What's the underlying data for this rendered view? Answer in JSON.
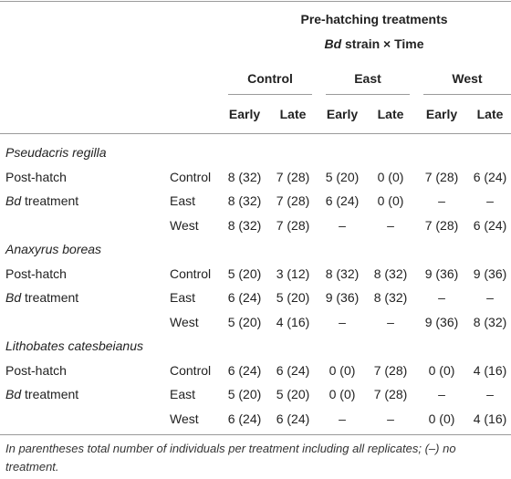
{
  "header": {
    "title": "Pre-hatching treatments",
    "subtitle": {
      "em": "Bd",
      "text": "strain × Time"
    },
    "groups": [
      "Control",
      "East",
      "West"
    ],
    "times": [
      "Early",
      "Late",
      "Early",
      "Late",
      "Early",
      "Late"
    ]
  },
  "sections": [
    {
      "species": "Pseudacris regilla",
      "rows": [
        {
          "label": {
            "text": "Post-hatch"
          },
          "treatment": "Control",
          "cells": [
            "8 (32)",
            "7 (28)",
            "5 (20)",
            "0 (0)",
            "7 (28)",
            "6 (24)"
          ]
        },
        {
          "label": {
            "em": "Bd",
            "text": "treatment"
          },
          "treatment": "East",
          "cells": [
            "8 (32)",
            "7 (28)",
            "6 (24)",
            "0 (0)",
            "–",
            "–"
          ]
        },
        {
          "treatment": "West",
          "cells": [
            "8 (32)",
            "7 (28)",
            "–",
            "–",
            "7 (28)",
            "6 (24)"
          ]
        }
      ]
    },
    {
      "species": "Anaxyrus boreas",
      "rows": [
        {
          "label": {
            "text": "Post-hatch"
          },
          "treatment": "Control",
          "cells": [
            "5 (20)",
            "3 (12)",
            "8 (32)",
            "8 (32)",
            "9 (36)",
            "9 (36)"
          ]
        },
        {
          "label": {
            "em": "Bd",
            "text": "treatment"
          },
          "treatment": "East",
          "cells": [
            "6 (24)",
            "5 (20)",
            "9 (36)",
            "8 (32)",
            "–",
            "–"
          ]
        },
        {
          "treatment": "West",
          "cells": [
            "5 (20)",
            "4 (16)",
            "–",
            "–",
            "9 (36)",
            "8 (32)"
          ]
        }
      ]
    },
    {
      "species": "Lithobates catesbeianus",
      "rows": [
        {
          "label": {
            "text": "Post-hatch"
          },
          "treatment": "Control",
          "cells": [
            "6 (24)",
            "6 (24)",
            "0 (0)",
            "7 (28)",
            "0 (0)",
            "4 (16)"
          ]
        },
        {
          "label": {
            "em": "Bd",
            "text": "treatment"
          },
          "treatment": "East",
          "cells": [
            "5 (20)",
            "5 (20)",
            "0 (0)",
            "7 (28)",
            "–",
            "–"
          ]
        },
        {
          "treatment": "West",
          "cells": [
            "6 (24)",
            "6 (24)",
            "–",
            "–",
            "0 (0)",
            "4 (16)"
          ]
        }
      ]
    }
  ],
  "footnote": "In parentheses total number of individuals per treatment including all replicates; (–) no treatment."
}
